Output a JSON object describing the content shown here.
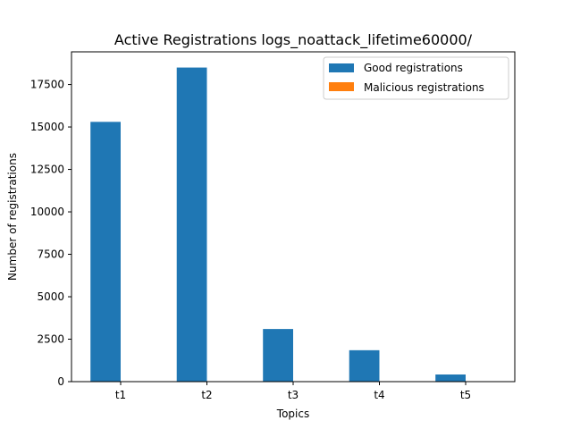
{
  "chart_data": {
    "type": "bar",
    "title": "Active Registrations logs_noattack_lifetime60000/",
    "xlabel": "Topics",
    "ylabel": "Number of registrations",
    "categories": [
      "t1",
      "t2",
      "t3",
      "t4",
      "t5"
    ],
    "series": [
      {
        "name": "Good registrations",
        "values": [
          15300,
          18500,
          3100,
          1850,
          420
        ],
        "color": "#1f77b4"
      },
      {
        "name": "Malicious registrations",
        "values": [
          0,
          0,
          0,
          0,
          0
        ],
        "color": "#ff7f0e"
      }
    ],
    "ylim": [
      0,
      19425
    ],
    "yticks": [
      0,
      2500,
      5000,
      7500,
      10000,
      12500,
      15000,
      17500
    ],
    "grid": false,
    "legend": "top-right"
  }
}
